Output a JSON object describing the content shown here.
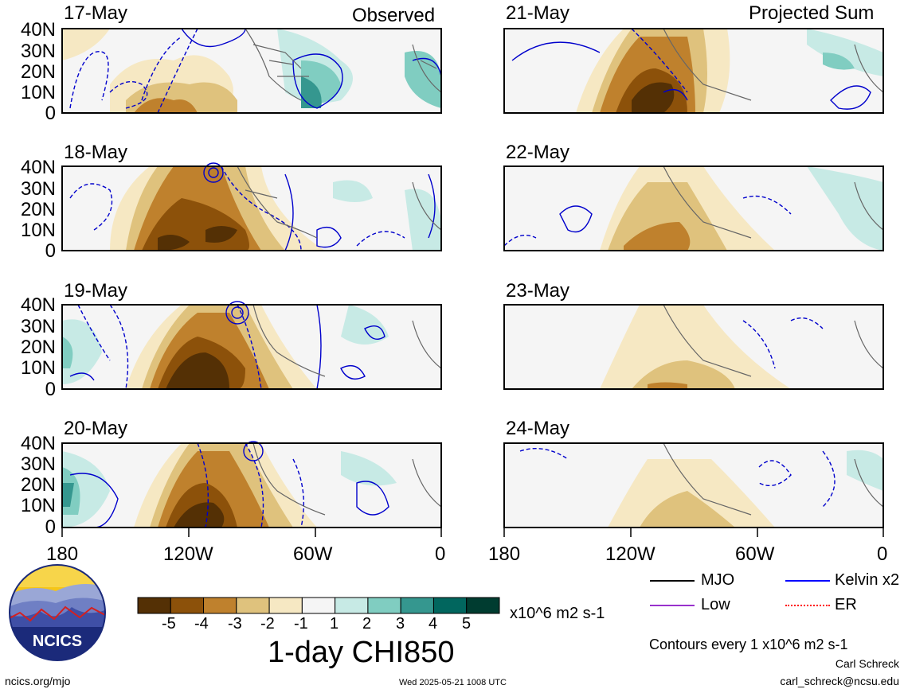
{
  "labels": {
    "observed": "Observed",
    "projected": "Projected Sum"
  },
  "panels_left": [
    {
      "date": "17-May"
    },
    {
      "date": "18-May"
    },
    {
      "date": "19-May"
    },
    {
      "date": "20-May"
    }
  ],
  "panels_right": [
    {
      "date": "21-May"
    },
    {
      "date": "22-May"
    },
    {
      "date": "23-May"
    },
    {
      "date": "24-May"
    }
  ],
  "y_ticks": [
    "40N",
    "30N",
    "20N",
    "10N",
    "0"
  ],
  "x_ticks": [
    "180",
    "120W",
    "60W",
    "0"
  ],
  "colorbar": {
    "ticks": [
      "-5",
      "-4",
      "-3",
      "-2",
      "-1",
      "1",
      "2",
      "3",
      "4",
      "5"
    ],
    "colors": [
      "#543005",
      "#8c510a",
      "#bf812d",
      "#dfc27d",
      "#f6e8c3",
      "#f5f5f5",
      "#c7eae5",
      "#80cdc1",
      "#35978f",
      "#01665e",
      "#003c30"
    ],
    "units": "x10^6 m2 s-1"
  },
  "title": "1-day CHI850",
  "legend": [
    {
      "label": "MJO",
      "color": "#000000"
    },
    {
      "label": "Kelvin x2",
      "color": "#0000ff"
    },
    {
      "label": "Low",
      "color": "#9932cc"
    },
    {
      "label": "ER",
      "color": "#ff0000"
    }
  ],
  "contours_note": "Contours every 1 x10^6 m2 s-1",
  "author": "Carl Schreck",
  "email": "carl_schreck@ncsu.edu",
  "url": "ncics.org/mjo",
  "timestamp": "Wed 2025-05-21 1008 UTC",
  "logo_text": "NCICS"
}
